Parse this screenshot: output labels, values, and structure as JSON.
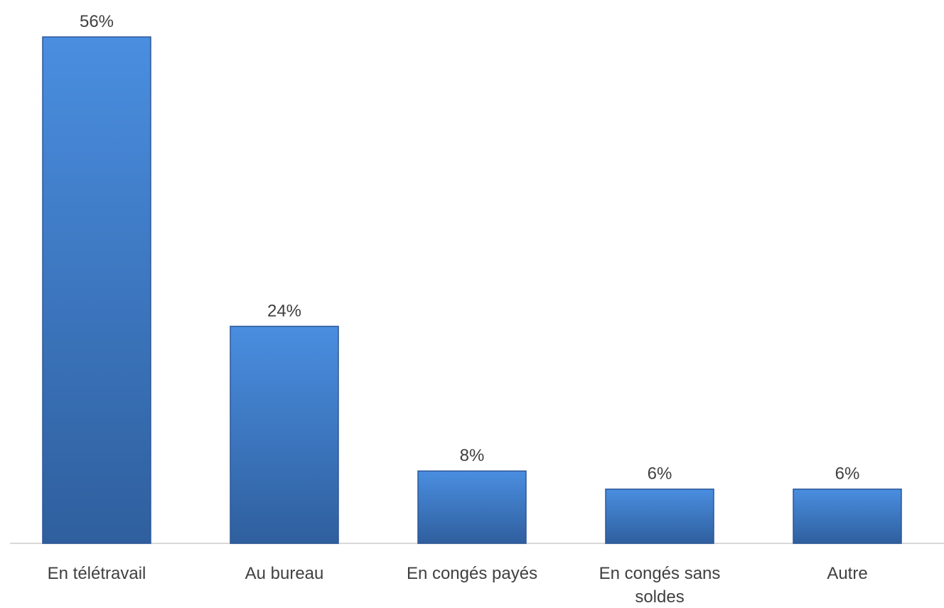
{
  "chart_data": {
    "type": "bar",
    "categories": [
      "En télétravail",
      "Au bureau",
      "En congés payés",
      "En congés sans soldes",
      "Autre"
    ],
    "category_lines": [
      [
        "En télétravail"
      ],
      [
        "Au bureau"
      ],
      [
        "En congés payés"
      ],
      [
        "En congés sans",
        "soldes"
      ],
      [
        "Autre"
      ]
    ],
    "values": [
      56,
      24,
      8,
      6,
      6
    ],
    "value_labels": [
      "56%",
      "24%",
      "8%",
      "6%",
      "6%"
    ],
    "unit": "%",
    "ylim": [
      0,
      56
    ],
    "grid": false,
    "legend": "none",
    "title": "",
    "xlabel": "",
    "ylabel": "",
    "colors": {
      "bar_top": "#4a8ee0",
      "bar_bottom": "#2f5f9e",
      "bar_edge": "#2b5797",
      "axis": "#d9d9d9",
      "text": "#404040"
    }
  }
}
